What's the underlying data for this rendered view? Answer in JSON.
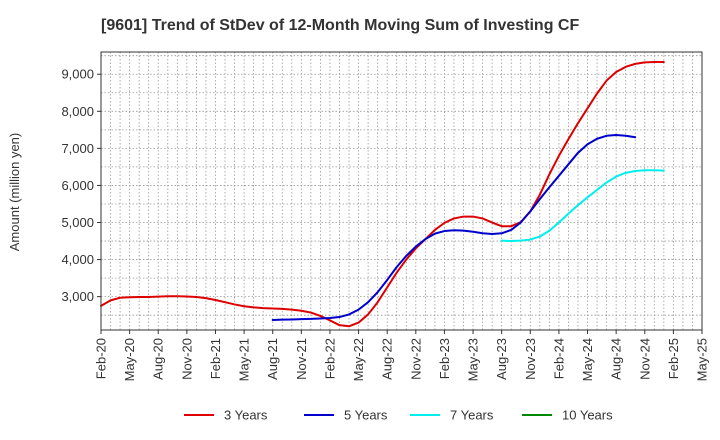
{
  "chart_data": {
    "type": "line",
    "title": "[9601]  Trend of StDev of 12-Month Moving Sum of Investing CF",
    "xlabel": "",
    "ylabel": "Amount (million yen)",
    "ylim": [
      2100,
      9600
    ],
    "yticks": [
      3000,
      4000,
      5000,
      6000,
      7000,
      8000,
      9000
    ],
    "ytick_labels": [
      "3,000",
      "4,000",
      "5,000",
      "6,000",
      "7,000",
      "8,000",
      "9,000"
    ],
    "x_tick_labels": [
      "Feb-20",
      "May-20",
      "Aug-20",
      "Nov-20",
      "Feb-21",
      "May-21",
      "Aug-21",
      "Nov-21",
      "Feb-22",
      "May-22",
      "Aug-22",
      "Nov-22",
      "Feb-23",
      "May-23",
      "Aug-23",
      "Nov-23",
      "Feb-24",
      "May-24",
      "Aug-24",
      "Nov-24",
      "Feb-25",
      "May-25"
    ],
    "grid": true,
    "legend_position": "bottom",
    "series": [
      {
        "name": "3 Years",
        "color": "#dd0000",
        "start_index": 0,
        "values": [
          2750,
          2900,
          2970,
          2985,
          2990,
          2990,
          3000,
          3010,
          3010,
          3005,
          2990,
          2960,
          2910,
          2850,
          2790,
          2740,
          2710,
          2690,
          2680,
          2670,
          2650,
          2620,
          2570,
          2480,
          2360,
          2230,
          2200,
          2300,
          2520,
          2850,
          3250,
          3650,
          4000,
          4300,
          4550,
          4800,
          4990,
          5110,
          5160,
          5160,
          5110,
          5000,
          4900,
          4900,
          5010,
          5300,
          5750,
          6300,
          6800,
          7250,
          7680,
          8080,
          8480,
          8830,
          9060,
          9200,
          9280,
          9320,
          9330,
          9330
        ]
      },
      {
        "name": "5 Years",
        "color": "#0000cc",
        "start_index": 18,
        "values": [
          2370,
          2380,
          2385,
          2395,
          2400,
          2410,
          2425,
          2450,
          2520,
          2650,
          2850,
          3120,
          3450,
          3800,
          4100,
          4350,
          4550,
          4700,
          4770,
          4790,
          4780,
          4750,
          4710,
          4690,
          4710,
          4800,
          5000,
          5300,
          5630,
          5950,
          6260,
          6570,
          6880,
          7110,
          7260,
          7340,
          7360,
          7340,
          7300
        ]
      },
      {
        "name": "7 Years",
        "color": "#00eeee",
        "start_index": 42,
        "values": [
          4510,
          4500,
          4510,
          4540,
          4620,
          4780,
          5000,
          5240,
          5470,
          5680,
          5880,
          6080,
          6240,
          6340,
          6390,
          6410,
          6410,
          6400
        ]
      },
      {
        "name": "10 Years",
        "color": "#008800",
        "start_index": 0,
        "values": []
      }
    ]
  }
}
